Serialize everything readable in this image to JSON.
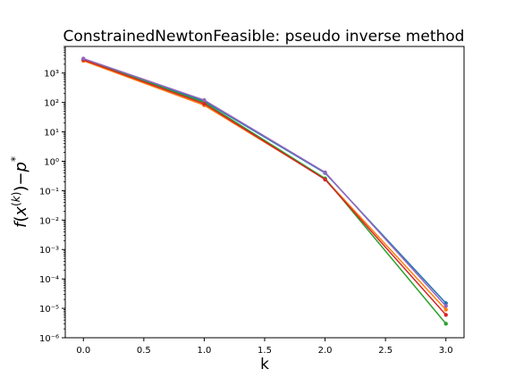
{
  "chart_data": {
    "type": "line",
    "title": "ConstrainedNewtonFeasible: pseudo inverse method",
    "xlabel": "k",
    "ylabel": "f(x^(k))−p^*",
    "yscale": "log",
    "xlim": [
      -0.15,
      3.15
    ],
    "ylim": [
      1e-06,
      8000
    ],
    "xticks": [
      "0.0",
      "0.5",
      "1.0",
      "1.5",
      "2.0",
      "2.5",
      "3.0"
    ],
    "yticks": [
      "10⁻⁶",
      "10⁻⁵",
      "10⁻⁴",
      "10⁻³",
      "10⁻²",
      "10⁻¹",
      "10⁰",
      "10¹",
      "10²",
      "10³"
    ],
    "grid": false,
    "legend": false,
    "x": [
      0,
      1,
      2,
      3
    ],
    "series": [
      {
        "color": "#1f77b4",
        "values": [
          3000,
          110,
          0.4,
          1.5e-05
        ]
      },
      {
        "color": "#ff7f0e",
        "values": [
          2600,
          80,
          0.25,
          9e-06
        ]
      },
      {
        "color": "#2ca02c",
        "values": [
          2900,
          100,
          0.26,
          3e-06
        ]
      },
      {
        "color": "#d62728",
        "values": [
          2800,
          90,
          0.24,
          6e-06
        ]
      },
      {
        "color": "#9467bd",
        "values": [
          3100,
          120,
          0.42,
          1.2e-05
        ]
      }
    ]
  }
}
